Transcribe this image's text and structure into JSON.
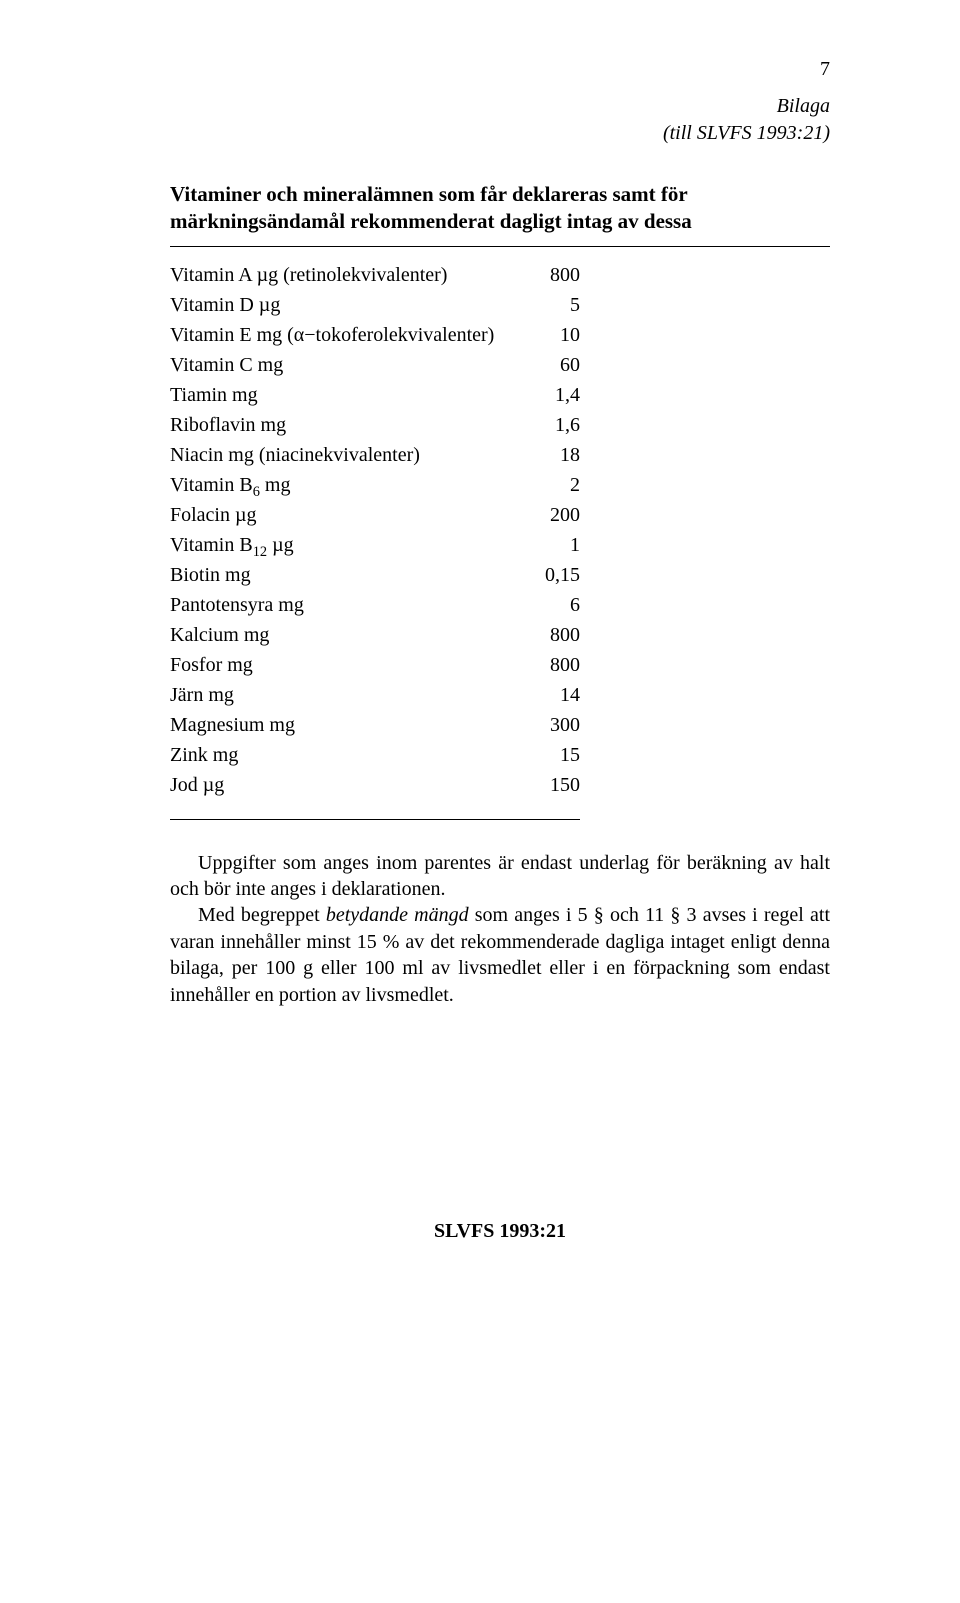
{
  "page_number": "7",
  "annex": {
    "line1": "Bilaga",
    "line2": "(till SLVFS 1993:21)"
  },
  "heading": "Vitaminer och mineralämnen som får deklareras samt för märkningsändamål rekommenderat dagligt intag av dessa",
  "rows": [
    {
      "label_pre": "Vitamin A µg (retinolekvivalenter)",
      "sub": "",
      "label_post": "",
      "value": "800"
    },
    {
      "label_pre": "Vitamin D µg",
      "sub": "",
      "label_post": "",
      "value": "5"
    },
    {
      "label_pre": "Vitamin E mg (α−tokoferolekvivalenter)",
      "sub": "",
      "label_post": "",
      "value": "10"
    },
    {
      "label_pre": "Vitamin C mg",
      "sub": "",
      "label_post": "",
      "value": "60"
    },
    {
      "label_pre": "Tiamin mg",
      "sub": "",
      "label_post": "",
      "value": "1,4"
    },
    {
      "label_pre": "Riboflavin mg",
      "sub": "",
      "label_post": "",
      "value": "1,6"
    },
    {
      "label_pre": "Niacin mg (niacinekvivalenter)",
      "sub": "",
      "label_post": "",
      "value": "18"
    },
    {
      "label_pre": "Vitamin B",
      "sub": "6",
      "label_post": " mg",
      "value": "2"
    },
    {
      "label_pre": "Folacin µg",
      "sub": "",
      "label_post": "",
      "value": "200"
    },
    {
      "label_pre": "Vitamin B",
      "sub": "12",
      "label_post": " µg",
      "value": "1"
    },
    {
      "label_pre": "Biotin mg",
      "sub": "",
      "label_post": "",
      "value": "0,15"
    },
    {
      "label_pre": "Pantotensyra mg",
      "sub": "",
      "label_post": "",
      "value": "6"
    },
    {
      "label_pre": "Kalcium mg",
      "sub": "",
      "label_post": "",
      "value": "800"
    },
    {
      "label_pre": "Fosfor mg",
      "sub": "",
      "label_post": "",
      "value": "800"
    },
    {
      "label_pre": "Järn mg",
      "sub": "",
      "label_post": "",
      "value": "14"
    },
    {
      "label_pre": "Magnesium mg",
      "sub": "",
      "label_post": "",
      "value": "300"
    },
    {
      "label_pre": "Zink mg",
      "sub": "",
      "label_post": "",
      "value": "15"
    },
    {
      "label_pre": "Jod µg",
      "sub": "",
      "label_post": "",
      "value": "150"
    }
  ],
  "para1": "Uppgifter som anges inom parentes är endast underlag för beräkning av halt och bör inte anges i deklarationen.",
  "para2_pre": "Med begreppet ",
  "para2_italic": "betydande mängd",
  "para2_post": " som anges i 5 § och 11 § 3 avses i regel att varan innehåller minst 15 % av det rekommenderade dagliga intaget enligt denna bilaga, per 100 g eller 100 ml av livsmedlet eller i en förpackning som endast innehåller en portion av livsmedlet.",
  "footer_code": "SLVFS 1993:21"
}
